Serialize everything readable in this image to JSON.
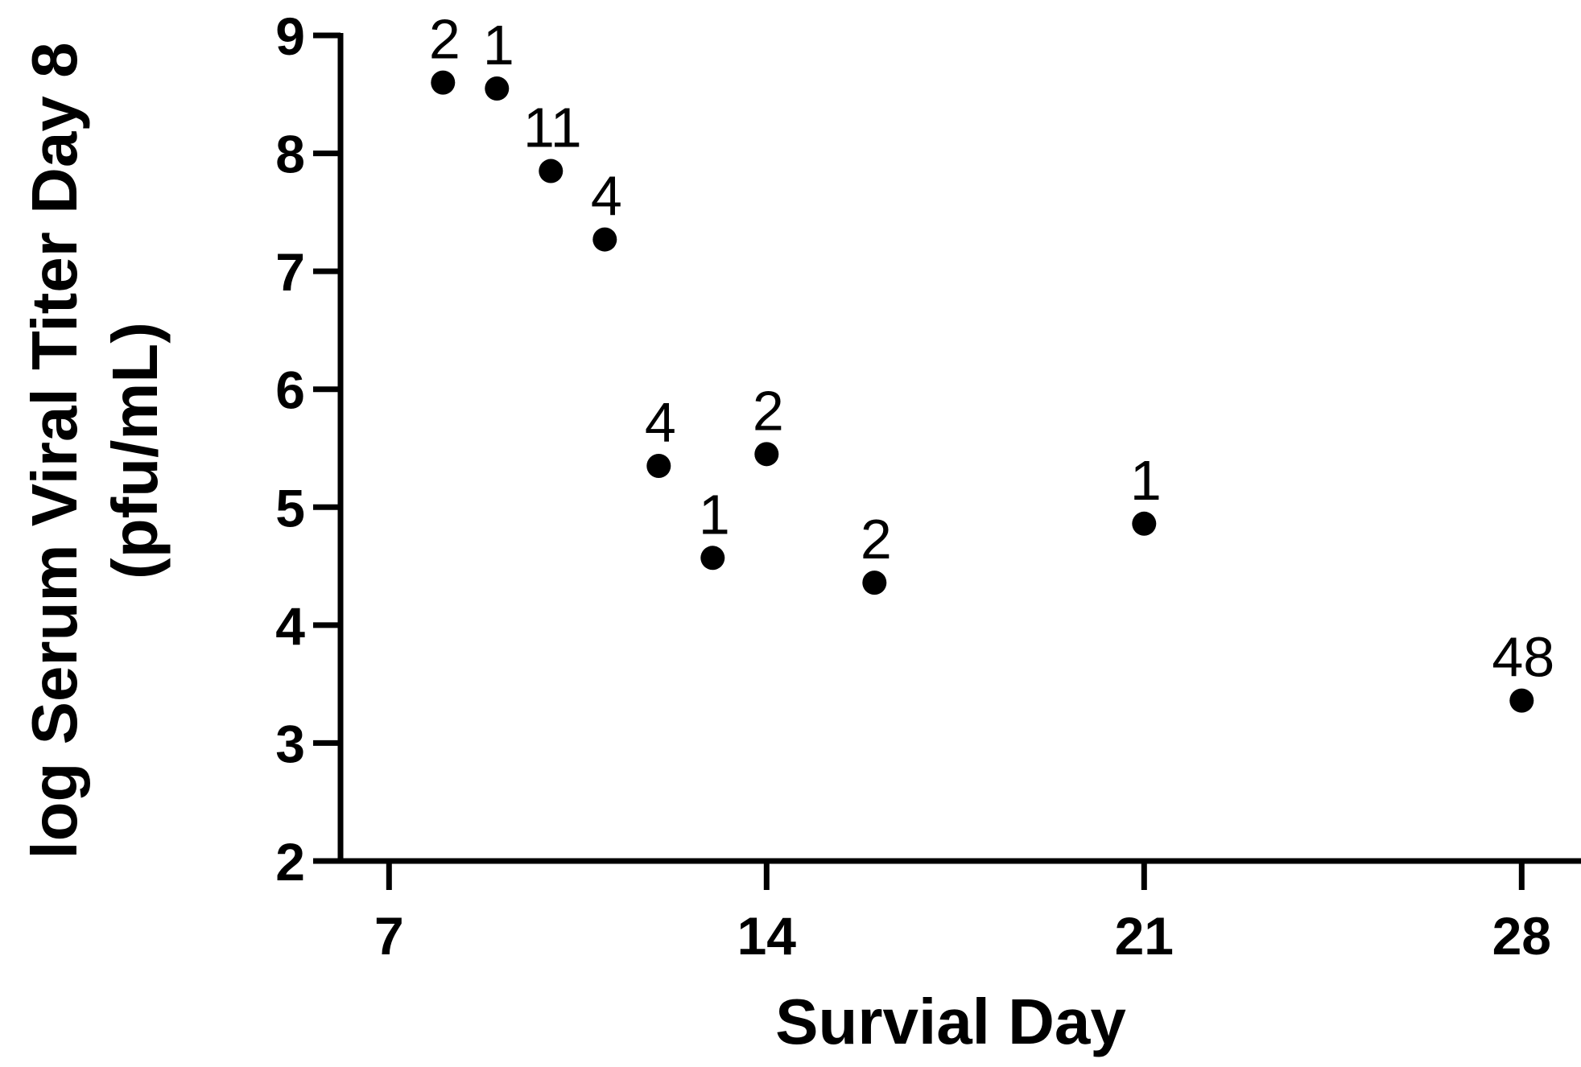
{
  "chart_data": {
    "type": "scatter",
    "xlabel": "Survial Day",
    "ylabel_lines": [
      "log Serum Viral Titer Day 8",
      "(pfu/mL)"
    ],
    "xlim": [
      6.1,
      29.1
    ],
    "ylim": [
      2,
      9
    ],
    "x_ticks": [
      7,
      14,
      21,
      28
    ],
    "y_ticks": [
      2,
      3,
      4,
      5,
      6,
      7,
      8,
      9
    ],
    "grid": false,
    "legend": "none",
    "marker_color": "#000000",
    "points": [
      {
        "x": 8.0,
        "y": 8.6,
        "label": "2"
      },
      {
        "x": 9.0,
        "y": 8.55,
        "label": "1"
      },
      {
        "x": 10.0,
        "y": 7.85,
        "label": "11"
      },
      {
        "x": 11.0,
        "y": 7.27,
        "label": "4"
      },
      {
        "x": 12.0,
        "y": 5.35,
        "label": "4"
      },
      {
        "x": 13.0,
        "y": 4.57,
        "label": "1"
      },
      {
        "x": 14.0,
        "y": 5.45,
        "label": "2"
      },
      {
        "x": 16.0,
        "y": 4.36,
        "label": "2"
      },
      {
        "x": 21.0,
        "y": 4.86,
        "label": "1"
      },
      {
        "x": 28.0,
        "y": 3.36,
        "label": "48"
      }
    ]
  }
}
